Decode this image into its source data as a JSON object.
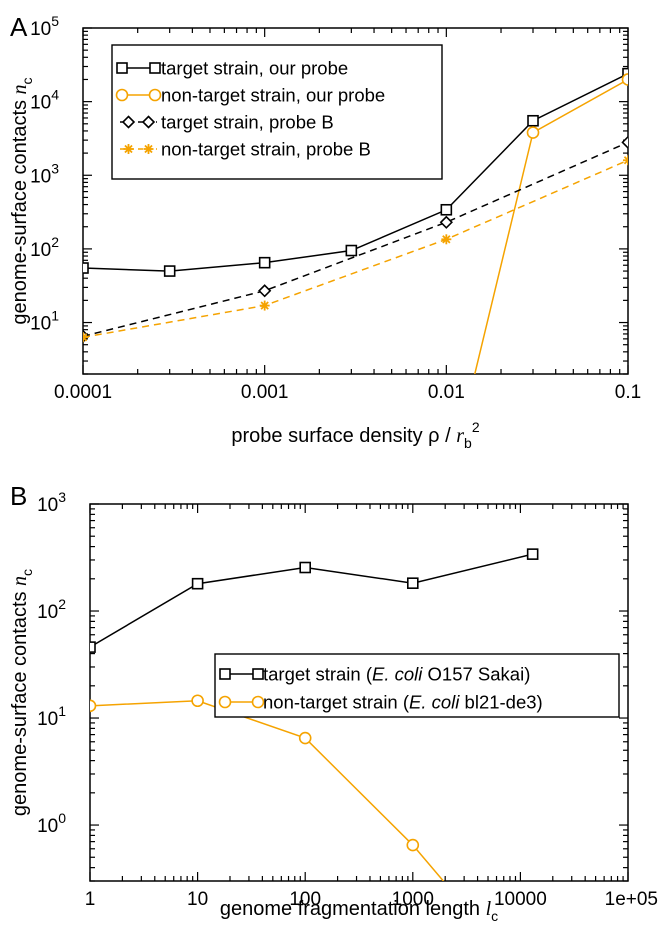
{
  "chart_data": [
    {
      "type": "line",
      "panel_label": "A",
      "xscale": "log",
      "yscale": "log",
      "xlim": [
        0.0001,
        0.1
      ],
      "ylim": [
        2,
        100000
      ],
      "grid": false,
      "legend_position": "top-left",
      "xlabel_parts": {
        "main": "probe surface density ρ / ",
        "var": "r",
        "sub": "b",
        "sup": "2"
      },
      "ylabel_parts": {
        "main": "genome-surface contacts  ",
        "var": "n",
        "sub": "c"
      },
      "x_ticks": [
        {
          "value": 0.0001,
          "label": "0.0001"
        },
        {
          "value": 0.001,
          "label": "0.001"
        },
        {
          "value": 0.01,
          "label": "0.01"
        },
        {
          "value": 0.1,
          "label": "0.1"
        }
      ],
      "y_ticks": [
        {
          "value": 10,
          "mant": "10",
          "exp": "1"
        },
        {
          "value": 100,
          "mant": "10",
          "exp": "2"
        },
        {
          "value": 1000,
          "mant": "10",
          "exp": "3"
        },
        {
          "value": 10000,
          "mant": "10",
          "exp": "4"
        },
        {
          "value": 100000,
          "mant": "10",
          "exp": "5"
        }
      ],
      "series": [
        {
          "name": "target strain, our probe",
          "color": "#000000",
          "marker": "square",
          "dash": "solid",
          "x": [
            0.0001,
            0.0003,
            0.001,
            0.003,
            0.01,
            0.03,
            0.1
          ],
          "y": [
            55,
            50,
            65,
            95,
            340,
            5500,
            24000
          ]
        },
        {
          "name": "non-target strain, our probe",
          "color": "#f5a300",
          "marker": "circle",
          "dash": "solid",
          "x": [
            0.01,
            0.03,
            0.1
          ],
          "y": [
            0.05,
            3800,
            20000
          ]
        },
        {
          "name": "target strain, probe B",
          "color": "#000000",
          "marker": "diamond",
          "dash": "dashed",
          "x": [
            0.0001,
            0.001,
            0.01,
            0.1
          ],
          "y": [
            6.5,
            27,
            230,
            2800
          ]
        },
        {
          "name": "non-target strain, probe B",
          "color": "#f5a300",
          "marker": "star",
          "dash": "dashed",
          "x": [
            0.0001,
            0.001,
            0.01,
            0.1
          ],
          "y": [
            6.3,
            17,
            135,
            1600
          ]
        }
      ]
    },
    {
      "type": "line",
      "panel_label": "B",
      "xscale": "log",
      "yscale": "log",
      "xlim": [
        1,
        100000
      ],
      "ylim": [
        0.3,
        1000
      ],
      "grid": false,
      "legend_position": "center-right",
      "xlabel_parts": {
        "main": "genome fragmentation length  ",
        "var": "l",
        "sub": "c"
      },
      "ylabel_parts": {
        "main": "genome-surface contacts  ",
        "var": "n",
        "sub": "c"
      },
      "x_ticks": [
        {
          "value": 1,
          "label": "1"
        },
        {
          "value": 10,
          "label": "10"
        },
        {
          "value": 100,
          "label": "100"
        },
        {
          "value": 1000,
          "label": "1000"
        },
        {
          "value": 10000,
          "label": "10000"
        },
        {
          "value": 100000,
          "label": "1e+05"
        }
      ],
      "y_ticks": [
        {
          "value": 1,
          "mant": "10",
          "exp": "0"
        },
        {
          "value": 10,
          "mant": "10",
          "exp": "1"
        },
        {
          "value": 100,
          "mant": "10",
          "exp": "2"
        },
        {
          "value": 1000,
          "mant": "10",
          "exp": "3"
        }
      ],
      "series": [
        {
          "name_parts": [
            "target strain (",
            "E. coli",
            " O157 Sakai)"
          ],
          "color": "#000000",
          "marker": "square",
          "dash": "solid",
          "x": [
            1,
            10,
            100,
            1000,
            13000
          ],
          "y": [
            46,
            180,
            255,
            182,
            340
          ]
        },
        {
          "name_parts": [
            "non-target strain (",
            "E. coli",
            " bl21-de3)"
          ],
          "color": "#f5a300",
          "marker": "circle",
          "dash": "solid",
          "x": [
            1,
            10,
            100,
            1000,
            2500
          ],
          "y": [
            13,
            14.5,
            6.5,
            0.65,
            0.22
          ]
        }
      ]
    }
  ]
}
